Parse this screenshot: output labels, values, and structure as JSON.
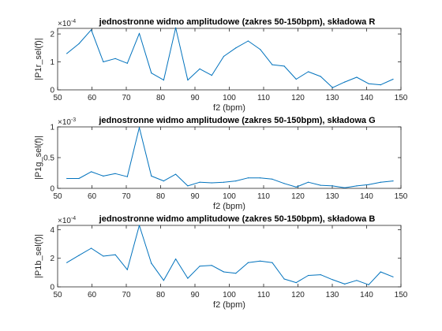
{
  "chart_data": [
    {
      "type": "line",
      "title": "jednostronne widmo amplitudowe (zakres 50-150bpm), składowa R",
      "xlabel": "f2 (bpm)",
      "ylabel": "|P1r_sel(f)|",
      "xlim": [
        50,
        150
      ],
      "ylim": [
        0,
        2.2
      ],
      "xticks": [
        "50",
        "60",
        "70",
        "80",
        "90",
        "100",
        "110",
        "120",
        "130",
        "140",
        "150"
      ],
      "yticks": [
        "0",
        "1",
        "2"
      ],
      "multiplier": "×10",
      "exponent": "-4",
      "color": "#0072BD",
      "series": [
        {
          "x": [
            52.7,
            56.2,
            59.8,
            63.3,
            66.8,
            70.3,
            73.8,
            77.3,
            80.9,
            84.4,
            87.9,
            91.4,
            94.9,
            98.4,
            101.9,
            105.5,
            109.0,
            112.5,
            116.0,
            119.5,
            123.0,
            126.6,
            130.1,
            133.6,
            137.1,
            140.6,
            144.1,
            147.7
          ],
          "y": [
            1.3,
            1.65,
            2.15,
            1.0,
            1.12,
            0.95,
            2.02,
            0.6,
            0.35,
            2.22,
            0.35,
            0.75,
            0.52,
            1.2,
            1.5,
            1.75,
            1.45,
            0.9,
            0.85,
            0.38,
            0.65,
            0.48,
            0.08,
            0.28,
            0.45,
            0.22,
            0.18,
            0.38
          ]
        }
      ]
    },
    {
      "type": "line",
      "title": "jednostronne widmo amplitudowe (zakres 50-150bpm), składowa G",
      "xlabel": "f2 (bpm)",
      "ylabel": "|P1g_sel(f)|",
      "xlim": [
        50,
        150
      ],
      "ylim": [
        0,
        1
      ],
      "xticks": [
        "50",
        "60",
        "70",
        "80",
        "90",
        "100",
        "110",
        "120",
        "130",
        "140",
        "150"
      ],
      "yticks": [
        "0",
        "0.5",
        "1"
      ],
      "multiplier": "×10",
      "exponent": "-3",
      "color": "#0072BD",
      "series": [
        {
          "x": [
            52.7,
            56.2,
            59.8,
            63.3,
            66.8,
            70.3,
            73.8,
            77.3,
            80.9,
            84.4,
            87.9,
            91.4,
            94.9,
            98.4,
            101.9,
            105.5,
            109.0,
            112.5,
            116.0,
            119.5,
            123.0,
            126.6,
            130.1,
            133.6,
            137.1,
            140.6,
            144.1,
            147.7
          ],
          "y": [
            0.16,
            0.16,
            0.27,
            0.2,
            0.24,
            0.19,
            0.99,
            0.2,
            0.12,
            0.23,
            0.04,
            0.1,
            0.09,
            0.1,
            0.12,
            0.17,
            0.17,
            0.15,
            0.08,
            0.02,
            0.1,
            0.05,
            0.04,
            0.01,
            0.04,
            0.06,
            0.1,
            0.12
          ]
        }
      ]
    },
    {
      "type": "line",
      "title": "jednostronne widmo amplitudowe (zakres 50-150bpm), składowa B",
      "xlabel": "f2 (bpm)",
      "ylabel": "|P1b_sel(f)|",
      "xlim": [
        50,
        150
      ],
      "ylim": [
        0,
        4.3
      ],
      "xticks": [
        "50",
        "60",
        "70",
        "80",
        "90",
        "100",
        "110",
        "120",
        "130",
        "140",
        "150"
      ],
      "yticks": [
        "0",
        "2",
        "4"
      ],
      "multiplier": "×10",
      "exponent": "-4",
      "color": "#0072BD",
      "series": [
        {
          "x": [
            52.7,
            56.2,
            59.8,
            63.3,
            66.8,
            70.3,
            73.8,
            77.3,
            80.9,
            84.4,
            87.9,
            91.4,
            94.9,
            98.4,
            101.9,
            105.5,
            109.0,
            112.5,
            116.0,
            119.5,
            123.0,
            126.6,
            130.1,
            133.6,
            137.1,
            140.6,
            144.1,
            147.7
          ],
          "y": [
            1.7,
            2.2,
            2.7,
            2.15,
            2.25,
            1.2,
            4.3,
            1.65,
            0.45,
            1.95,
            0.6,
            1.45,
            1.5,
            1.05,
            0.95,
            1.7,
            1.8,
            1.7,
            0.55,
            0.3,
            0.8,
            0.85,
            0.5,
            0.2,
            0.45,
            0.15,
            1.05,
            0.7
          ]
        }
      ]
    }
  ]
}
